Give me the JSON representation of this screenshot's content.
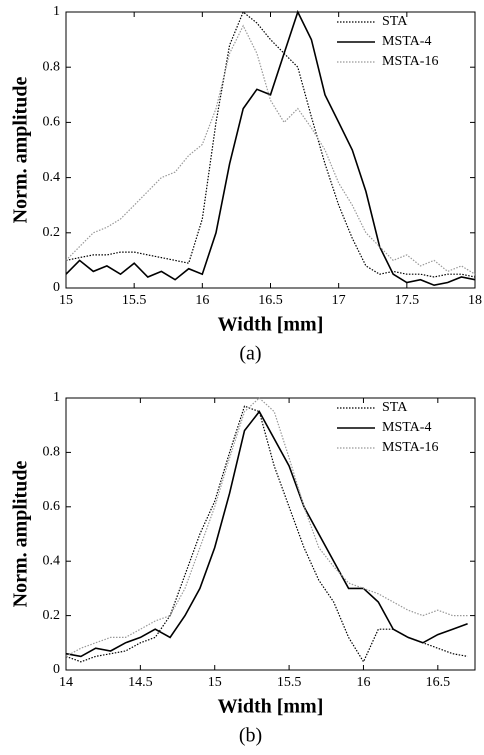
{
  "chart_data": [
    {
      "type": "line",
      "caption": "(a)",
      "xlabel": "Width [mm]",
      "ylabel": "Norm. amplitude",
      "x": [
        15,
        15.1,
        15.2,
        15.3,
        15.4,
        15.5,
        15.6,
        15.7,
        15.8,
        15.9,
        16,
        16.1,
        16.2,
        16.3,
        16.4,
        16.5,
        16.6,
        16.7,
        16.8,
        16.9,
        17,
        17.1,
        17.2,
        17.3,
        17.4,
        17.5,
        17.6,
        17.7,
        17.8,
        17.9,
        18
      ],
      "xlim": [
        15,
        18
      ],
      "xticks": [
        15,
        15.5,
        16,
        16.5,
        17,
        17.5,
        18
      ],
      "ylim": [
        0,
        1
      ],
      "yticks": [
        0,
        0.2,
        0.4,
        0.6,
        0.8,
        1
      ],
      "legend": "upper right",
      "series": [
        {
          "name": "STA",
          "color": "#000000",
          "dash": "dotted",
          "values": [
            0.1,
            0.11,
            0.12,
            0.12,
            0.13,
            0.13,
            0.12,
            0.11,
            0.1,
            0.09,
            0.25,
            0.6,
            0.88,
            1.0,
            0.96,
            0.9,
            0.85,
            0.8,
            0.62,
            0.45,
            0.3,
            0.18,
            0.08,
            0.05,
            0.06,
            0.05,
            0.05,
            0.04,
            0.05,
            0.05,
            0.04
          ]
        },
        {
          "name": "MSTA-4",
          "color": "#000000",
          "dash": "solid",
          "values": [
            0.05,
            0.1,
            0.06,
            0.08,
            0.05,
            0.09,
            0.04,
            0.06,
            0.03,
            0.07,
            0.05,
            0.2,
            0.45,
            0.65,
            0.72,
            0.7,
            0.85,
            1.0,
            0.9,
            0.7,
            0.6,
            0.5,
            0.35,
            0.15,
            0.05,
            0.02,
            0.03,
            0.01,
            0.02,
            0.04,
            0.03
          ]
        },
        {
          "name": "MSTA-16",
          "color": "#999999",
          "dash": "dotted",
          "values": [
            0.1,
            0.15,
            0.2,
            0.22,
            0.25,
            0.3,
            0.35,
            0.4,
            0.42,
            0.48,
            0.52,
            0.65,
            0.85,
            0.95,
            0.85,
            0.68,
            0.6,
            0.65,
            0.58,
            0.5,
            0.38,
            0.3,
            0.2,
            0.15,
            0.1,
            0.12,
            0.08,
            0.1,
            0.06,
            0.08,
            0.05
          ]
        }
      ]
    },
    {
      "type": "line",
      "caption": "(b)",
      "xlabel": "Width [mm]",
      "ylabel": "Norm. amplitude",
      "x": [
        14,
        14.1,
        14.2,
        14.3,
        14.4,
        14.5,
        14.6,
        14.7,
        14.8,
        14.9,
        15,
        15.1,
        15.2,
        15.3,
        15.4,
        15.5,
        15.6,
        15.7,
        15.8,
        15.9,
        16,
        16.1,
        16.2,
        16.3,
        16.4,
        16.5,
        16.6,
        16.7
      ],
      "xlim": [
        14,
        16.75
      ],
      "xticks": [
        14,
        14.5,
        15,
        15.5,
        16,
        16.5
      ],
      "ylim": [
        0,
        1
      ],
      "yticks": [
        0,
        0.2,
        0.4,
        0.6,
        0.8,
        1
      ],
      "legend": "upper right",
      "series": [
        {
          "name": "STA",
          "color": "#000000",
          "dash": "dotted",
          "values": [
            0.05,
            0.03,
            0.05,
            0.06,
            0.07,
            0.1,
            0.12,
            0.2,
            0.35,
            0.5,
            0.62,
            0.8,
            0.97,
            0.95,
            0.75,
            0.6,
            0.45,
            0.33,
            0.25,
            0.12,
            0.03,
            0.15,
            0.15,
            0.12,
            0.1,
            0.08,
            0.06,
            0.05
          ]
        },
        {
          "name": "MSTA-4",
          "color": "#000000",
          "dash": "solid",
          "values": [
            0.06,
            0.05,
            0.08,
            0.07,
            0.1,
            0.12,
            0.15,
            0.12,
            0.2,
            0.3,
            0.45,
            0.65,
            0.88,
            0.95,
            0.85,
            0.75,
            0.6,
            0.5,
            0.4,
            0.3,
            0.3,
            0.25,
            0.15,
            0.12,
            0.1,
            0.13,
            0.15,
            0.17
          ]
        },
        {
          "name": "MSTA-16",
          "color": "#999999",
          "dash": "dotted",
          "values": [
            0.05,
            0.08,
            0.1,
            0.12,
            0.12,
            0.15,
            0.18,
            0.2,
            0.3,
            0.45,
            0.6,
            0.78,
            0.95,
            1.0,
            0.95,
            0.78,
            0.6,
            0.45,
            0.38,
            0.32,
            0.3,
            0.28,
            0.25,
            0.22,
            0.2,
            0.22,
            0.2,
            0.2
          ]
        }
      ]
    }
  ]
}
